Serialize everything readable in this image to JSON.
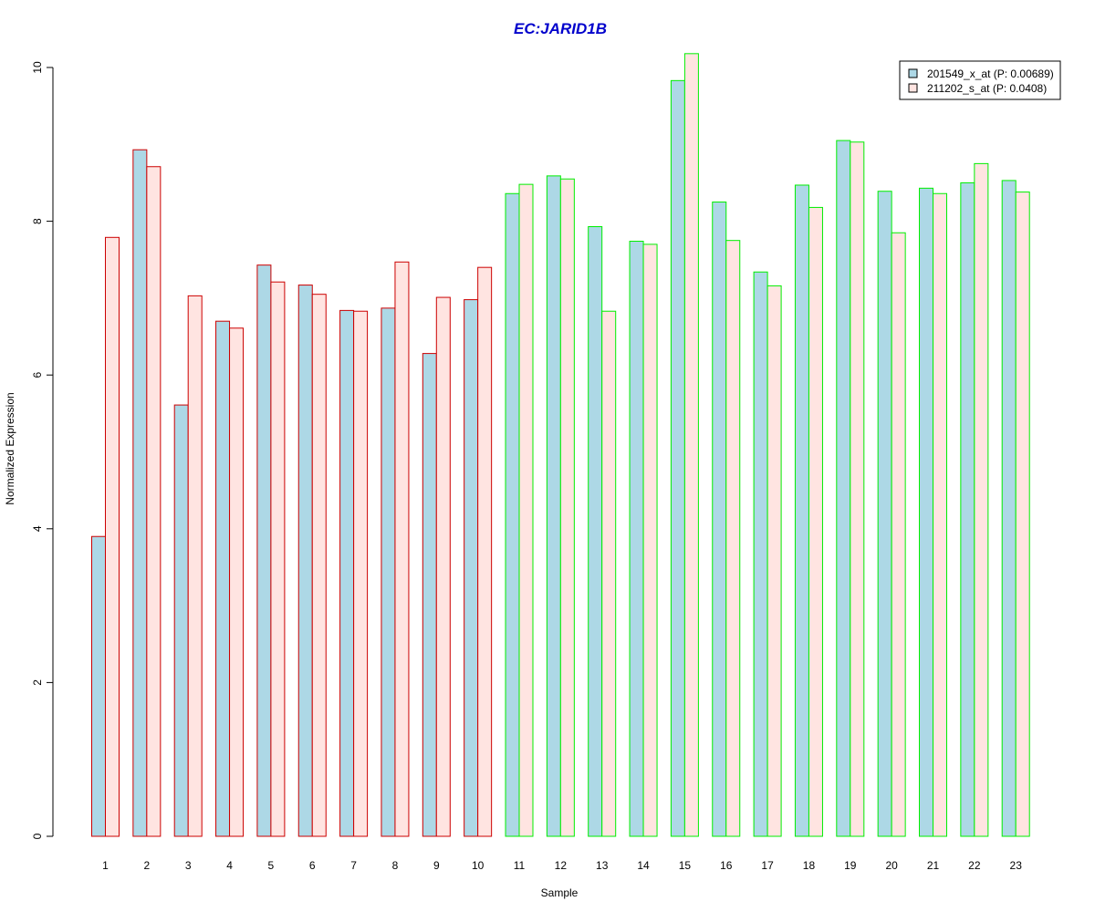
{
  "chart_data": {
    "type": "bar",
    "title": "EC:JARID1B",
    "xlabel": "Sample",
    "ylabel": "Normalized Expression",
    "ylim": [
      0,
      10
    ],
    "yticks": [
      "0",
      "2",
      "4",
      "6",
      "8",
      "10"
    ],
    "grid": false,
    "legend_position": "top-right",
    "categories": [
      "1",
      "2",
      "3",
      "4",
      "5",
      "6",
      "7",
      "8",
      "9",
      "10",
      "11",
      "12",
      "13",
      "14",
      "15",
      "16",
      "17",
      "18",
      "19",
      "20",
      "21",
      "22",
      "23"
    ],
    "series": [
      {
        "name": "201549_x_at (P: 0.00689)",
        "fill": "#add8e6",
        "values": [
          3.9,
          8.93,
          5.61,
          6.7,
          7.43,
          7.17,
          6.84,
          6.87,
          6.28,
          6.98,
          8.36,
          8.59,
          7.93,
          7.74,
          9.83,
          8.25,
          7.34,
          8.47,
          9.05,
          8.39,
          8.43,
          8.5,
          8.53
        ]
      },
      {
        "name": "211202_s_at (P: 0.0408)",
        "fill": "#ffe4e1",
        "values": [
          7.79,
          8.71,
          7.03,
          6.61,
          7.21,
          7.05,
          6.83,
          7.47,
          7.01,
          7.4,
          8.48,
          8.55,
          6.83,
          7.7,
          10.18,
          7.75,
          7.16,
          8.18,
          9.03,
          7.85,
          8.36,
          8.75,
          8.38
        ]
      }
    ],
    "group_border_colors": [
      "#cc0000",
      "#cc0000",
      "#cc0000",
      "#cc0000",
      "#cc0000",
      "#cc0000",
      "#cc0000",
      "#cc0000",
      "#cc0000",
      "#cc0000",
      "#00ee00",
      "#00ee00",
      "#00ee00",
      "#00ee00",
      "#00ee00",
      "#00ee00",
      "#00ee00",
      "#00ee00",
      "#00ee00",
      "#00ee00",
      "#00ee00",
      "#00ee00",
      "#00ee00"
    ],
    "title_color": "#0000cc"
  }
}
